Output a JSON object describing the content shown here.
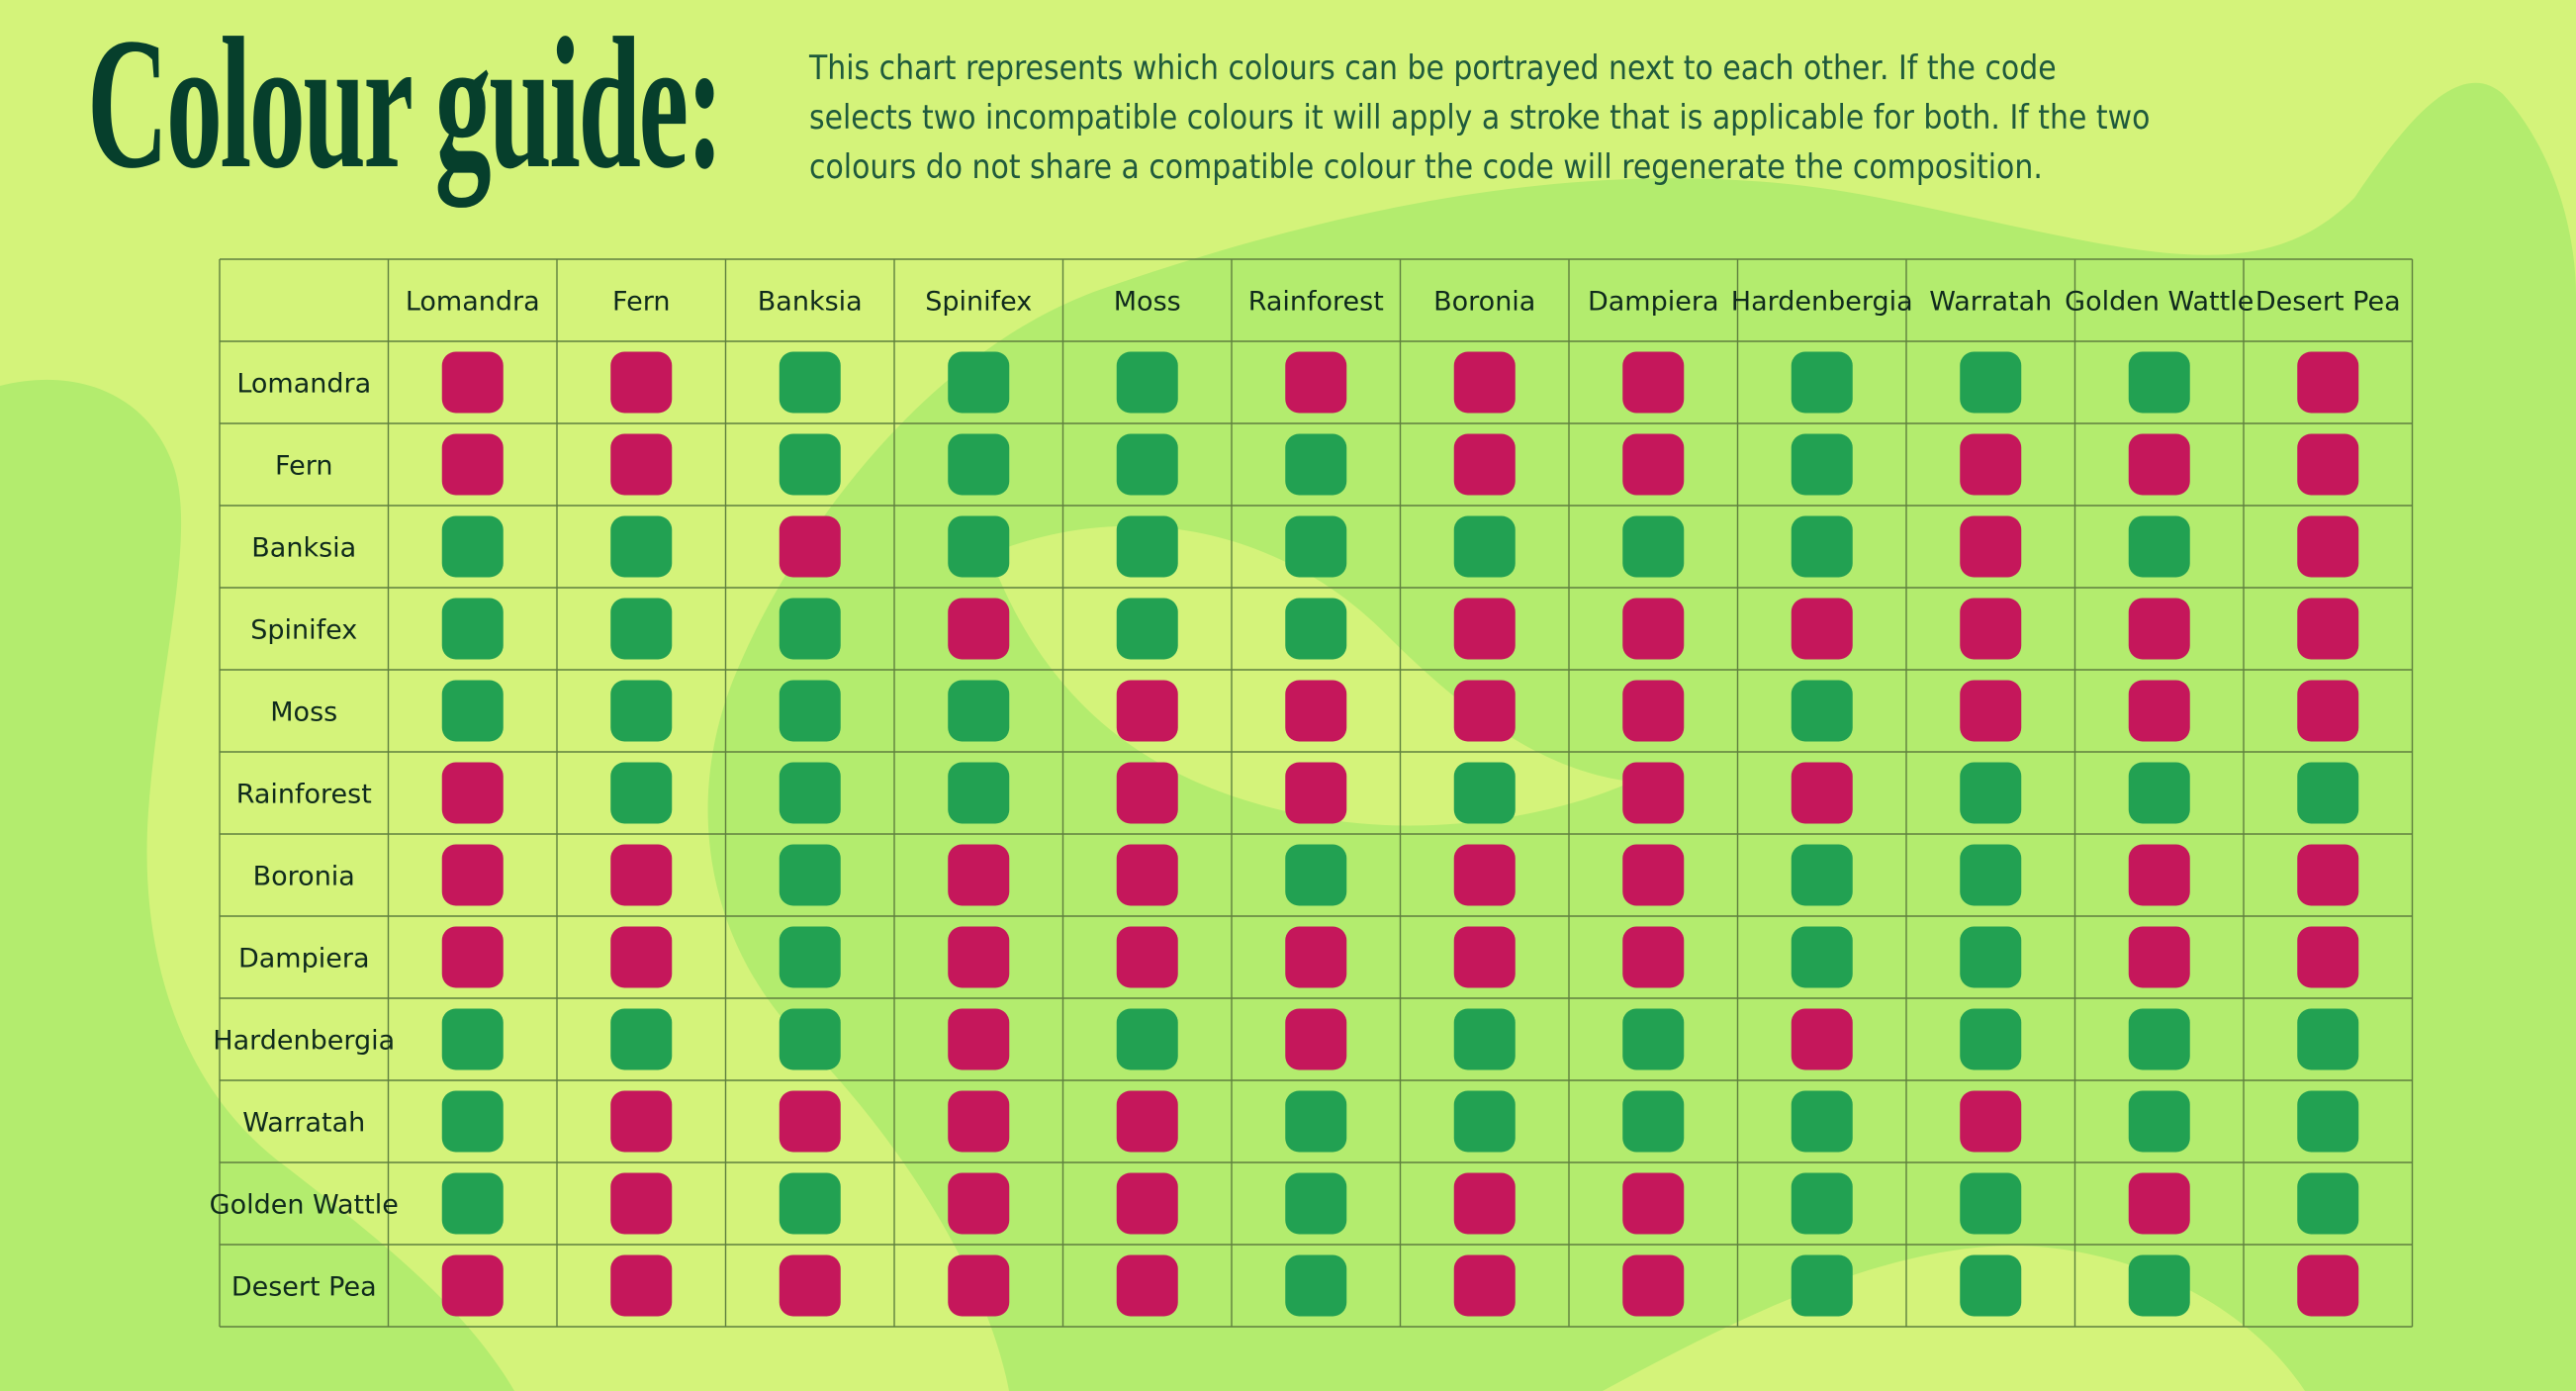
{
  "title": "Colour guide:",
  "description": "This chart represents which colours can be portrayed next to each other. If the code selects two incompatible colours it will apply a stroke that is applicable for both. If the two colours do not share a compatible colour the code will regenerate the composition.",
  "colors": {
    "background": "#d4f37a",
    "blob": "#b3ec6e",
    "compatible": "#22a152",
    "incompatible": "#c5175b",
    "grid_line": "#5f7f3e",
    "title": "#063f2c"
  },
  "legend_meaning": {
    "compatible": "green",
    "incompatible": "pink"
  },
  "chart_data": {
    "type": "table",
    "title": "Colour guide:",
    "columns": [
      "Lomandra",
      "Fern",
      "Banksia",
      "Spinifex",
      "Moss",
      "Rainforest",
      "Boronia",
      "Dampiera",
      "Hardenbergia",
      "Warratah",
      "Golden Wattle",
      "Desert Pea"
    ],
    "rows": [
      "Lomandra",
      "Fern",
      "Banksia",
      "Spinifex",
      "Moss",
      "Rainforest",
      "Boronia",
      "Dampiera",
      "Hardenbergia",
      "Warratah",
      "Golden Wattle",
      "Desert Pea"
    ],
    "values": [
      [
        0,
        0,
        1,
        1,
        1,
        0,
        0,
        0,
        1,
        1,
        1,
        0
      ],
      [
        0,
        0,
        1,
        1,
        1,
        1,
        0,
        0,
        1,
        0,
        0,
        0
      ],
      [
        1,
        1,
        0,
        1,
        1,
        1,
        1,
        1,
        1,
        0,
        1,
        0
      ],
      [
        1,
        1,
        1,
        0,
        1,
        1,
        0,
        0,
        0,
        0,
        0,
        0
      ],
      [
        1,
        1,
        1,
        1,
        0,
        0,
        0,
        0,
        1,
        0,
        0,
        0
      ],
      [
        0,
        1,
        1,
        1,
        0,
        0,
        1,
        0,
        0,
        1,
        1,
        1
      ],
      [
        0,
        0,
        1,
        0,
        0,
        1,
        0,
        0,
        1,
        1,
        0,
        0
      ],
      [
        0,
        0,
        1,
        0,
        0,
        0,
        0,
        0,
        1,
        1,
        0,
        0
      ],
      [
        1,
        1,
        1,
        0,
        1,
        0,
        1,
        1,
        0,
        1,
        1,
        1
      ],
      [
        1,
        0,
        0,
        0,
        0,
        1,
        1,
        1,
        1,
        0,
        1,
        1
      ],
      [
        1,
        0,
        1,
        0,
        0,
        1,
        0,
        0,
        1,
        1,
        0,
        1
      ],
      [
        0,
        0,
        0,
        0,
        0,
        1,
        0,
        0,
        1,
        1,
        1,
        0
      ]
    ]
  }
}
